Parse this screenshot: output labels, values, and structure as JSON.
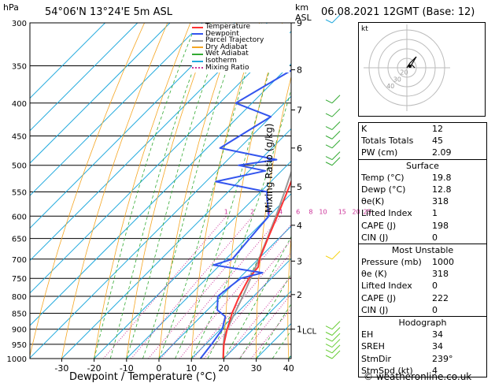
{
  "header": {
    "hpa_label": "hPa",
    "location": "54°06'N  13°24'E  5m  ASL",
    "km_label": "km",
    "asl_label": "ASL",
    "datetime": "06.08.2021  12GMT  (Base: 12)"
  },
  "legend": [
    {
      "label": "Temperature",
      "color": "#ff3333",
      "style": "solid"
    },
    {
      "label": "Dewpoint",
      "color": "#3355ee",
      "style": "solid"
    },
    {
      "label": "Parcel Trajectory",
      "color": "#999999",
      "style": "solid"
    },
    {
      "label": "Dry Adiabat",
      "color": "#f5a623",
      "style": "solid"
    },
    {
      "label": "Wet Adiabat",
      "color": "#33aa33",
      "style": "solid"
    },
    {
      "label": "Isotherm",
      "color": "#22aadd",
      "style": "solid"
    },
    {
      "label": "Mixing Ratio",
      "color": "#cc3399",
      "style": "dotted"
    }
  ],
  "x_axis": {
    "label": "Dewpoint / Temperature (°C)",
    "ticks": [
      "-30",
      "-20",
      "-10",
      "0",
      "10",
      "20",
      "30",
      "40"
    ]
  },
  "y_axis": {
    "ticks": [
      "300",
      "350",
      "400",
      "450",
      "500",
      "550",
      "600",
      "650",
      "700",
      "750",
      "800",
      "850",
      "900",
      "950",
      "1000"
    ]
  },
  "km_axis": {
    "ticks": [
      "9",
      "8",
      "7",
      "6",
      "5",
      "4",
      "3",
      "2",
      "1"
    ],
    "lcl_label": "LCL"
  },
  "mixing_axis_label": "Mixing Ratio (g/kg)",
  "mixing_ratio_labels": [
    "1",
    "2",
    "3",
    "4",
    "6",
    "8",
    "10",
    "15",
    "20",
    "25"
  ],
  "chart_data": {
    "type": "skew-t",
    "temperature": [
      {
        "p": 1000,
        "t": 19.8
      },
      {
        "p": 950,
        "t": 15.6
      },
      {
        "p": 900,
        "t": 12.0
      },
      {
        "p": 850,
        "t": 8.6
      },
      {
        "p": 800,
        "t": 5.6
      },
      {
        "p": 750,
        "t": 3.0
      },
      {
        "p": 720,
        "t": 2.4
      },
      {
        "p": 700,
        "t": 0.4
      },
      {
        "p": 650,
        "t": -3.4
      },
      {
        "p": 600,
        "t": -7.4
      },
      {
        "p": 550,
        "t": -11.8
      },
      {
        "p": 500,
        "t": -16.8
      },
      {
        "p": 480,
        "t": -18.4
      },
      {
        "p": 450,
        "t": -22.5
      },
      {
        "p": 400,
        "t": -29.0
      },
      {
        "p": 350,
        "t": -37.0
      },
      {
        "p": 300,
        "t": -45.5
      }
    ],
    "dewpoint": [
      {
        "p": 1000,
        "t": 12.8
      },
      {
        "p": 950,
        "t": 11.8
      },
      {
        "p": 900,
        "t": 10.5
      },
      {
        "p": 860,
        "t": 7.5
      },
      {
        "p": 840,
        "t": 3.0
      },
      {
        "p": 800,
        "t": -1.0
      },
      {
        "p": 780,
        "t": -0.5
      },
      {
        "p": 750,
        "t": 0.5
      },
      {
        "p": 735,
        "t": 5.5
      },
      {
        "p": 715,
        "t": -12.0
      },
      {
        "p": 700,
        "t": -8.0
      },
      {
        "p": 650,
        "t": -9.0
      },
      {
        "p": 600,
        "t": -10.0
      },
      {
        "p": 560,
        "t": -16.5
      },
      {
        "p": 550,
        "t": -18.0
      },
      {
        "p": 530,
        "t": -37.0
      },
      {
        "p": 510,
        "t": -25.0
      },
      {
        "p": 500,
        "t": -35.0
      },
      {
        "p": 490,
        "t": -25.0
      },
      {
        "p": 470,
        "t": -46.0
      },
      {
        "p": 420,
        "t": -40.0
      },
      {
        "p": 400,
        "t": -55.0
      },
      {
        "p": 350,
        "t": -47.0
      },
      {
        "p": 300,
        "t": -58.0
      }
    ],
    "parcel": [
      {
        "p": 1000,
        "t": 19.8
      },
      {
        "p": 950,
        "t": 15.5
      },
      {
        "p": 920,
        "t": 13.0
      },
      {
        "p": 900,
        "t": 12.0
      },
      {
        "p": 850,
        "t": 9.4
      },
      {
        "p": 800,
        "t": 6.7
      },
      {
        "p": 750,
        "t": 3.6
      },
      {
        "p": 700,
        "t": 0.2
      },
      {
        "p": 650,
        "t": -3.6
      },
      {
        "p": 600,
        "t": -7.8
      },
      {
        "p": 550,
        "t": -12.6
      },
      {
        "p": 500,
        "t": -18.0
      },
      {
        "p": 450,
        "t": -24.2
      },
      {
        "p": 400,
        "t": -31.4
      },
      {
        "p": 350,
        "t": -39.6
      },
      {
        "p": 300,
        "t": -49.0
      }
    ],
    "xlim": [
      -35,
      40
    ],
    "plim": [
      1000,
      300
    ]
  },
  "indices": {
    "rows": [
      {
        "k": "K",
        "v": "12"
      },
      {
        "k": "Totals Totals",
        "v": "45"
      },
      {
        "k": "PW (cm)",
        "v": "2.09"
      }
    ],
    "surface_title": "Surface",
    "surface": [
      {
        "k": "Temp (°C)",
        "v": "19.8"
      },
      {
        "k": "Dewp (°C)",
        "v": "12.8"
      },
      {
        "k": "θe(K)",
        "v": "318"
      },
      {
        "k": "Lifted Index",
        "v": "1"
      },
      {
        "k": "CAPE (J)",
        "v": "198"
      },
      {
        "k": "CIN (J)",
        "v": "0"
      }
    ],
    "unstable_title": "Most Unstable",
    "unstable": [
      {
        "k": "Pressure (mb)",
        "v": "1000"
      },
      {
        "k": "θe (K)",
        "v": "318"
      },
      {
        "k": "Lifted Index",
        "v": "0"
      },
      {
        "k": "CAPE (J)",
        "v": "222"
      },
      {
        "k": "CIN (J)",
        "v": "0"
      }
    ],
    "hodo_title": "Hodograph",
    "hodo": [
      {
        "k": "EH",
        "v": "34"
      },
      {
        "k": "SREH",
        "v": "34"
      },
      {
        "k": "StmDir",
        "v": "239°"
      },
      {
        "k": "StmSpd (kt)",
        "v": "4"
      }
    ]
  },
  "hodograph": {
    "unit_label": "kt",
    "ring_labels": [
      "40",
      "30",
      "20"
    ]
  },
  "footer": "© weatheronline.co.uk"
}
